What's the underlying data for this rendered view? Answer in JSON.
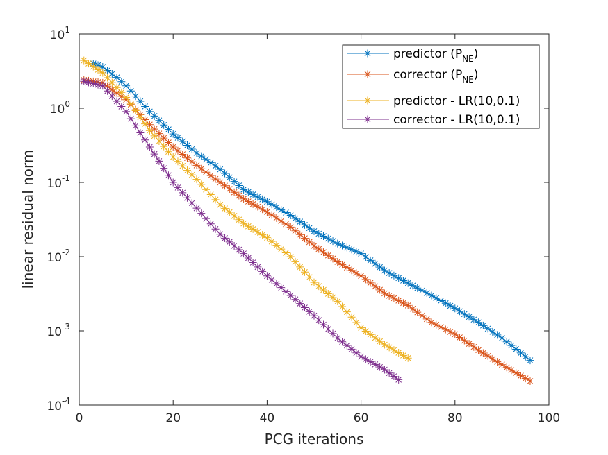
{
  "chart_data": {
    "type": "line",
    "title": "",
    "xlabel": "PCG iterations",
    "ylabel": "linear residual norm",
    "xlim": [
      0,
      100
    ],
    "ylim": [
      0.0001,
      10
    ],
    "yscale": "log",
    "grid": false,
    "legend_position": "top-right",
    "x_ticks": [
      0,
      20,
      40,
      60,
      80,
      100
    ],
    "x_tick_labels": [
      "0",
      "20",
      "40",
      "60",
      "80",
      "100"
    ],
    "y_ticks": [
      {
        "value": 10,
        "base": "10",
        "exp": "1"
      },
      {
        "value": 1,
        "base": "10",
        "exp": "0"
      },
      {
        "value": 0.1,
        "base": "10",
        "exp": "-1"
      },
      {
        "value": 0.01,
        "base": "10",
        "exp": "-2"
      },
      {
        "value": 0.001,
        "base": "10",
        "exp": "-3"
      },
      {
        "value": 0.0001,
        "base": "10",
        "exp": "-4"
      }
    ],
    "marker": "*",
    "series": [
      {
        "name": "predictor (PNE)",
        "legend_main": "predictor (P",
        "legend_sub": "NE",
        "legend_tail": ")",
        "color": "#0072BD",
        "x_start": 3,
        "x_end": 96,
        "anchors": [
          [
            3,
            4.0
          ],
          [
            5,
            3.6
          ],
          [
            8,
            2.6
          ],
          [
            10,
            2.0
          ],
          [
            15,
            0.9
          ],
          [
            20,
            0.45
          ],
          [
            25,
            0.25
          ],
          [
            30,
            0.15
          ],
          [
            35,
            0.08
          ],
          [
            40,
            0.055
          ],
          [
            45,
            0.036
          ],
          [
            50,
            0.022
          ],
          [
            55,
            0.015
          ],
          [
            60,
            0.011
          ],
          [
            65,
            0.0065
          ],
          [
            70,
            0.0044
          ],
          [
            75,
            0.003
          ],
          [
            80,
            0.002
          ],
          [
            85,
            0.0013
          ],
          [
            90,
            0.0008
          ],
          [
            96,
            0.0004
          ]
        ]
      },
      {
        "name": "corrector (PNE)",
        "legend_main": "corrector (P",
        "legend_sub": "NE",
        "legend_tail": ")",
        "color": "#D95319",
        "x_start": 1,
        "x_end": 96,
        "anchors": [
          [
            1,
            2.4
          ],
          [
            5,
            2.2
          ],
          [
            10,
            1.3
          ],
          [
            15,
            0.6
          ],
          [
            20,
            0.3
          ],
          [
            25,
            0.17
          ],
          [
            30,
            0.1
          ],
          [
            35,
            0.06
          ],
          [
            40,
            0.04
          ],
          [
            45,
            0.025
          ],
          [
            50,
            0.014
          ],
          [
            55,
            0.0085
          ],
          [
            60,
            0.0055
          ],
          [
            65,
            0.0032
          ],
          [
            70,
            0.0022
          ],
          [
            75,
            0.0013
          ],
          [
            80,
            0.0009
          ],
          [
            85,
            0.00055
          ],
          [
            90,
            0.00035
          ],
          [
            96,
            0.00021
          ]
        ]
      },
      {
        "name": "predictor - LR(10,0.1)",
        "legend_main": "predictor - LR(10,0.1)",
        "legend_sub": "",
        "legend_tail": "",
        "color": "#EDB120",
        "x_start": 1,
        "x_end": 70,
        "anchors": [
          [
            1,
            4.4
          ],
          [
            5,
            3.0
          ],
          [
            10,
            1.4
          ],
          [
            15,
            0.5
          ],
          [
            20,
            0.22
          ],
          [
            25,
            0.11
          ],
          [
            30,
            0.05
          ],
          [
            35,
            0.028
          ],
          [
            40,
            0.018
          ],
          [
            45,
            0.01
          ],
          [
            50,
            0.0045
          ],
          [
            55,
            0.0025
          ],
          [
            60,
            0.0011
          ],
          [
            65,
            0.00065
          ],
          [
            70,
            0.00043
          ]
        ]
      },
      {
        "name": "corrector - LR(10,0.1)",
        "legend_main": "corrector - LR(10,0.1)",
        "legend_sub": "",
        "legend_tail": "",
        "color": "#7E2F8E",
        "x_start": 1,
        "x_end": 68,
        "anchors": [
          [
            1,
            2.3
          ],
          [
            5,
            2.0
          ],
          [
            10,
            0.9
          ],
          [
            15,
            0.3
          ],
          [
            20,
            0.1
          ],
          [
            25,
            0.045
          ],
          [
            30,
            0.02
          ],
          [
            35,
            0.011
          ],
          [
            40,
            0.0055
          ],
          [
            45,
            0.003
          ],
          [
            50,
            0.0016
          ],
          [
            55,
            0.0008
          ],
          [
            60,
            0.00045
          ],
          [
            65,
            0.0003
          ],
          [
            68,
            0.00022
          ]
        ]
      }
    ]
  }
}
